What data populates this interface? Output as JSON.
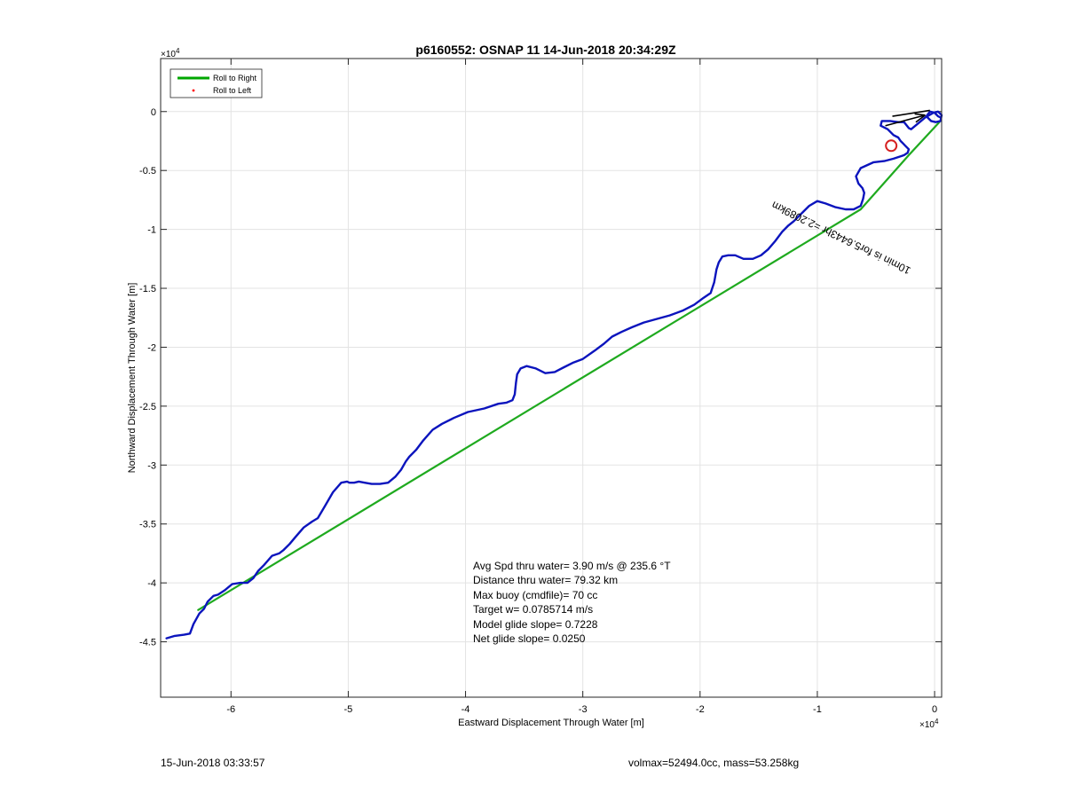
{
  "chart_data": {
    "type": "line",
    "title": "p6160552: OSNAP 11 14-Jun-2018 20:34:29Z",
    "xlabel": "Eastward Displacement Through Water [m]",
    "ylabel": "Northward Displacement Through Water [m]",
    "x_exponent_label": "×10",
    "x_exponent_power": "4",
    "y_exponent_label": "×10",
    "y_exponent_power": "4",
    "xlim": [
      -66000,
      600
    ],
    "ylim": [
      -49700,
      4500
    ],
    "x_ticks": [
      -60000,
      -50000,
      -40000,
      -30000,
      -20000,
      -10000,
      0
    ],
    "x_tick_labels": [
      "-6",
      "-5",
      "-4",
      "-3",
      "-2",
      "-1",
      "0"
    ],
    "y_ticks": [
      -45000,
      -40000,
      -35000,
      -30000,
      -25000,
      -20000,
      -15000,
      -10000,
      -5000,
      0
    ],
    "y_tick_labels": [
      "-4.5",
      "-4",
      "-3.5",
      "-3",
      "-2.5",
      "-2",
      "-1.5",
      "-1",
      "-0.5",
      "0"
    ],
    "grid": true,
    "legend_position": "top-left",
    "legend": [
      {
        "label": "Roll to Right",
        "color": "#00a600",
        "style": "line"
      },
      {
        "label": "Roll to Left",
        "color": "#ff0000",
        "style": "dot"
      }
    ],
    "series": [
      {
        "name": "Roll to Right",
        "color": "#1faa1f",
        "x": [
          -62800,
          -6300,
          -2200,
          400
        ],
        "y": [
          -42300,
          -8300,
          -3700,
          -900
        ]
      },
      {
        "color": "#0b14bd",
        "x": [
          -65500,
          -64800,
          -64000,
          -63500,
          -63200,
          -62700,
          -62300,
          -62000,
          -61500,
          -61100,
          -60500,
          -59900,
          -59200,
          -58600,
          -58100,
          -57700,
          -57200,
          -56500,
          -55900,
          -55500,
          -55000,
          -54500,
          -53800,
          -53100,
          -52600,
          -52000,
          -51300,
          -50600,
          -50100,
          -49900,
          -49700,
          -49500,
          -49100,
          -48600,
          -48000,
          -47300,
          -46600,
          -46000,
          -45500,
          -45100,
          -44800,
          -44200,
          -43600,
          -42800,
          -42000,
          -41000,
          -39800,
          -38400,
          -37200,
          -36500,
          -36000,
          -35800,
          -35700,
          -35600,
          -35300,
          -34800,
          -34000,
          -33200,
          -32400,
          -31600,
          -30800,
          -30000,
          -29000,
          -28200,
          -27500,
          -26700,
          -25800,
          -24800,
          -23700,
          -22600,
          -21500,
          -20500,
          -19700,
          -19100,
          -18800,
          -18600,
          -18400,
          -18100,
          -17600,
          -17000,
          -16300,
          -15500,
          -14800,
          -14200,
          -13600,
          -13000,
          -12500,
          -12000,
          -11400,
          -10700,
          -10000,
          -9300,
          -8500,
          -7600,
          -6900,
          -6300,
          -6100,
          -6000,
          -6150,
          -6500,
          -6700,
          -6300,
          -5200,
          -4300,
          -3500,
          -2600,
          -2300,
          -2200,
          -2500,
          -2700,
          -2900,
          -3100,
          -3500,
          -4000,
          -4600,
          -4500,
          -3800,
          -3100,
          -2600,
          -2200,
          -2000,
          -1400,
          -800,
          -100,
          300,
          600,
          500,
          100,
          -300,
          -700,
          -400,
          0,
          300,
          500
        ],
        "y": [
          -44700,
          -44500,
          -44400,
          -44300,
          -43500,
          -42600,
          -42200,
          -41600,
          -41100,
          -41000,
          -40600,
          -40100,
          -40000,
          -40000,
          -39600,
          -39000,
          -38500,
          -37700,
          -37500,
          -37200,
          -36700,
          -36100,
          -35300,
          -34800,
          -34500,
          -33500,
          -32300,
          -31500,
          -31400,
          -31500,
          -31500,
          -31500,
          -31400,
          -31500,
          -31600,
          -31600,
          -31500,
          -31000,
          -30400,
          -29700,
          -29300,
          -28700,
          -27900,
          -27000,
          -26500,
          -26000,
          -25500,
          -25200,
          -24800,
          -24700,
          -24500,
          -24000,
          -23000,
          -22300,
          -21800,
          -21600,
          -21800,
          -22200,
          -22100,
          -21700,
          -21300,
          -21000,
          -20300,
          -19700,
          -19100,
          -18700,
          -18300,
          -17900,
          -17600,
          -17300,
          -16900,
          -16400,
          -15800,
          -15400,
          -14500,
          -13400,
          -12800,
          -12300,
          -12200,
          -12200,
          -12500,
          -12500,
          -12200,
          -11700,
          -11000,
          -10200,
          -9700,
          -9300,
          -8700,
          -8000,
          -7600,
          -7800,
          -8100,
          -8300,
          -8300,
          -8000,
          -7400,
          -6900,
          -6500,
          -6100,
          -5500,
          -4800,
          -4300,
          -4200,
          -4000,
          -3700,
          -3500,
          -3200,
          -2900,
          -2700,
          -2500,
          -2200,
          -2000,
          -1500,
          -1200,
          -800,
          -800,
          -900,
          -900,
          -1400,
          -1500,
          -1000,
          -500,
          -100,
          0,
          -300,
          -800,
          -900,
          -800,
          -400,
          0,
          -100,
          -400,
          -500
        ]
      }
    ],
    "marker": {
      "x": -3700,
      "y": -2900,
      "color": "#d62020"
    },
    "rotated_label": {
      "text": "10min is for5.6443hr =2.2089km",
      "x": -13700,
      "y": -7600,
      "angle_deg": 26
    },
    "annotations": [
      "Avg Spd thru water=  3.90 m/s @ 235.6 °T",
      "Distance thru water= 79.32 km",
      "Max buoy (cmdfile)= 70 cc",
      "Target w= 0.0785714 m/s",
      "Model glide slope= 0.7228",
      "Net glide slope= 0.0250"
    ]
  },
  "footer": {
    "date": "15-Jun-2018 03:33:57",
    "info": "volmax=52494.0cc, mass=53.258kg"
  }
}
